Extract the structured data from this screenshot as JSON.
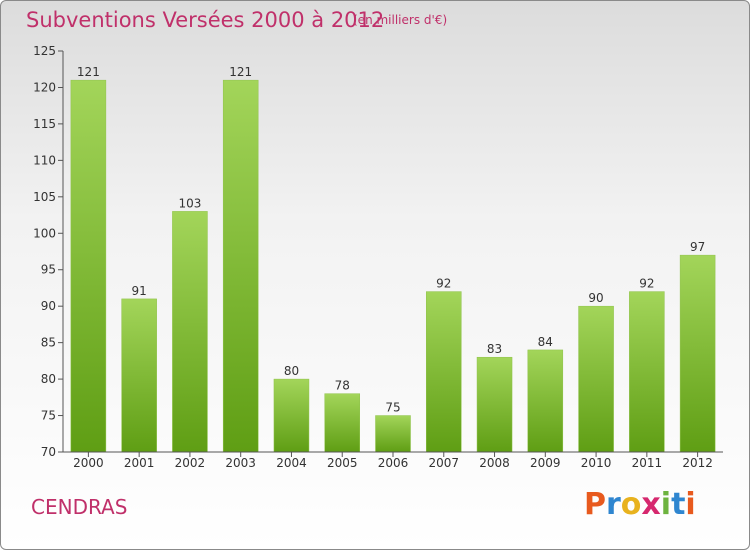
{
  "header": {
    "title": "Subventions Versées 2000 à 2012",
    "unit": "(en milliers d'€)"
  },
  "footer": {
    "commune": "CENDRAS",
    "logo": "Proxiti",
    "logo_letters": [
      {
        "char": "P",
        "color": "#e85a1e"
      },
      {
        "char": "r",
        "color": "#2f86d0"
      },
      {
        "char": "o",
        "color": "#e8b21e"
      },
      {
        "char": "x",
        "color": "#d6286e"
      },
      {
        "char": "i",
        "color": "#6db33f"
      },
      {
        "char": "t",
        "color": "#2f86d0"
      },
      {
        "char": "i",
        "color": "#e85a1e"
      }
    ]
  },
  "colors": {
    "bar_light": "#a3d55a",
    "bar_dark": "#5f9e14",
    "accent": "#c0306a",
    "axis": "#555555"
  },
  "chart_data": {
    "type": "bar",
    "title": "Subventions Versées 2000 à 2012",
    "subtitle": "(en milliers d'€)",
    "categories": [
      "2000",
      "2001",
      "2002",
      "2003",
      "2004",
      "2005",
      "2006",
      "2007",
      "2008",
      "2009",
      "2010",
      "2011",
      "2012"
    ],
    "values": [
      121,
      91,
      103,
      121,
      80,
      78,
      75,
      92,
      83,
      84,
      90,
      92,
      97
    ],
    "ylim": [
      70,
      125
    ],
    "yticks": [
      70,
      75,
      80,
      85,
      90,
      95,
      100,
      105,
      110,
      115,
      120,
      125
    ],
    "grid": false,
    "data_labels": true
  }
}
